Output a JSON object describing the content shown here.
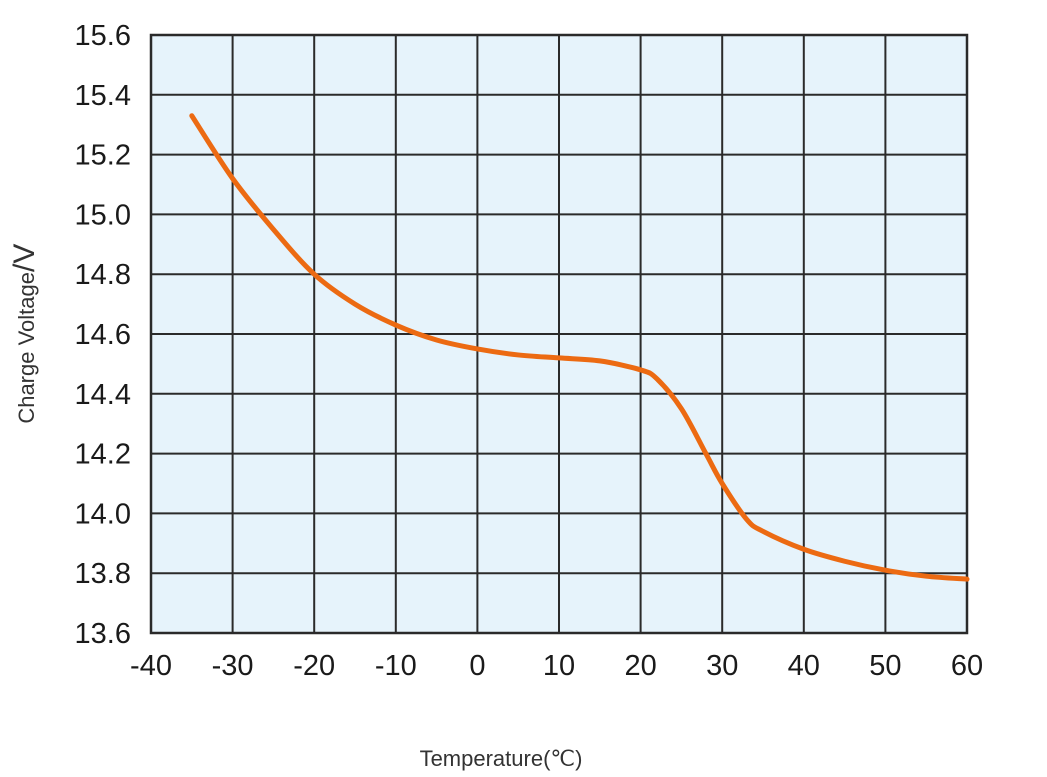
{
  "chart_data": {
    "type": "line",
    "title": "",
    "xlabel": "Temperature(℃)",
    "ylabel": "Charge Voltage",
    "ylabel_unit": "/V",
    "xlim": [
      -40,
      60
    ],
    "ylim": [
      13.6,
      15.6
    ],
    "x_ticks": [
      -40,
      -30,
      -20,
      -10,
      0,
      10,
      20,
      30,
      40,
      50,
      60
    ],
    "y_ticks": [
      "13.6",
      "13.8",
      "14.0",
      "14.2",
      "14.4",
      "14.6",
      "14.8",
      "15.0",
      "15.2",
      "15.4",
      "15.6"
    ],
    "grid": true,
    "legend": "none",
    "series": [
      {
        "x": [
          -35,
          -30,
          -25,
          -20,
          -15,
          -10,
          -5,
          0,
          5,
          10,
          15,
          20,
          22,
          25,
          28,
          30,
          33,
          35,
          40,
          45,
          50,
          55,
          60
        ],
        "y": [
          15.33,
          15.12,
          14.95,
          14.8,
          14.7,
          14.63,
          14.58,
          14.55,
          14.53,
          14.52,
          14.51,
          14.48,
          14.45,
          14.35,
          14.2,
          14.1,
          13.98,
          13.94,
          13.88,
          13.84,
          13.81,
          13.79,
          13.78
        ],
        "color": "#ec6a12"
      }
    ],
    "colors": {
      "plot_background": "#e6f3fb",
      "grid": "#2a2a2a",
      "line": "#ec6a12"
    }
  }
}
